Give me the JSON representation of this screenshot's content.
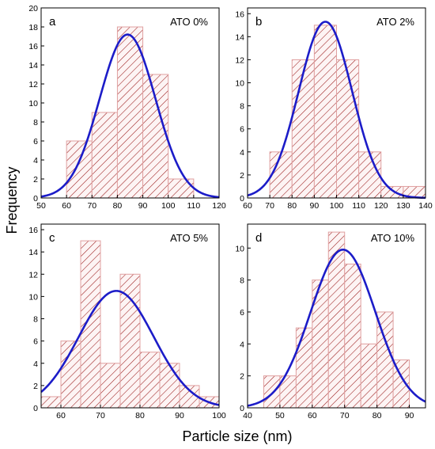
{
  "figure": {
    "ylabel": "Frequency",
    "xlabel": "Particle size (nm)"
  },
  "colors": {
    "bar_edge": "#e0a0a0",
    "bar_fill": "#fdf4f4",
    "hatch": "#9b1b1b",
    "curve": "#1c1cc8",
    "axis": "#000000"
  },
  "chart_data": [
    {
      "type": "bar",
      "panel": "a",
      "label": "ATO 0%",
      "bin_edges": [
        50,
        60,
        70,
        80,
        90,
        100,
        110,
        120
      ],
      "values": [
        0,
        6,
        9,
        18,
        13,
        2,
        0
      ],
      "xlim": [
        50,
        120
      ],
      "ylim": [
        0,
        20
      ],
      "xticks": [
        50,
        60,
        70,
        80,
        90,
        100,
        110,
        120
      ],
      "yticks": [
        0,
        2,
        4,
        6,
        8,
        10,
        12,
        14,
        16,
        18,
        20
      ],
      "fit": {
        "type": "gaussian",
        "peak": 17.2,
        "center": 84,
        "sigma": 11
      }
    },
    {
      "type": "bar",
      "panel": "b",
      "label": "ATO 2%",
      "bin_edges": [
        60,
        70,
        80,
        90,
        100,
        110,
        120,
        130,
        140
      ],
      "values": [
        0,
        4,
        12,
        15,
        12,
        4,
        1,
        1
      ],
      "xlim": [
        60,
        140
      ],
      "ylim": [
        0,
        16.5
      ],
      "xticks": [
        60,
        70,
        80,
        90,
        100,
        110,
        120,
        130,
        140
      ],
      "yticks": [
        0,
        2,
        4,
        6,
        8,
        10,
        12,
        14,
        16
      ],
      "fit": {
        "type": "gaussian",
        "peak": 15.3,
        "center": 95,
        "sigma": 12
      }
    },
    {
      "type": "bar",
      "panel": "c",
      "label": "ATO 5%",
      "bin_edges": [
        55,
        60,
        65,
        70,
        75,
        80,
        85,
        90,
        95,
        100
      ],
      "values": [
        1,
        6,
        15,
        4,
        12,
        5,
        4,
        2,
        1
      ],
      "xlim": [
        55,
        100
      ],
      "ylim": [
        0,
        16.5
      ],
      "xticks": [
        60,
        70,
        80,
        90,
        100
      ],
      "yticks": [
        0,
        2,
        4,
        6,
        8,
        10,
        12,
        14,
        16
      ],
      "fit": {
        "type": "gaussian",
        "peak": 10.5,
        "center": 74,
        "sigma": 9.5
      }
    },
    {
      "type": "bar",
      "panel": "d",
      "label": "ATO 10%",
      "bin_edges": [
        45,
        50,
        55,
        60,
        65,
        70,
        75,
        80,
        85,
        90
      ],
      "values": [
        2,
        2,
        5,
        8,
        11,
        9,
        4,
        6,
        3
      ],
      "xlim": [
        40,
        95
      ],
      "ylim": [
        0,
        11.5
      ],
      "xticks": [
        40,
        50,
        60,
        70,
        80,
        90
      ],
      "yticks": [
        0,
        2,
        4,
        6,
        8,
        10
      ],
      "fit": {
        "type": "gaussian",
        "peak": 9.9,
        "center": 69.5,
        "sigma": 10
      }
    }
  ]
}
